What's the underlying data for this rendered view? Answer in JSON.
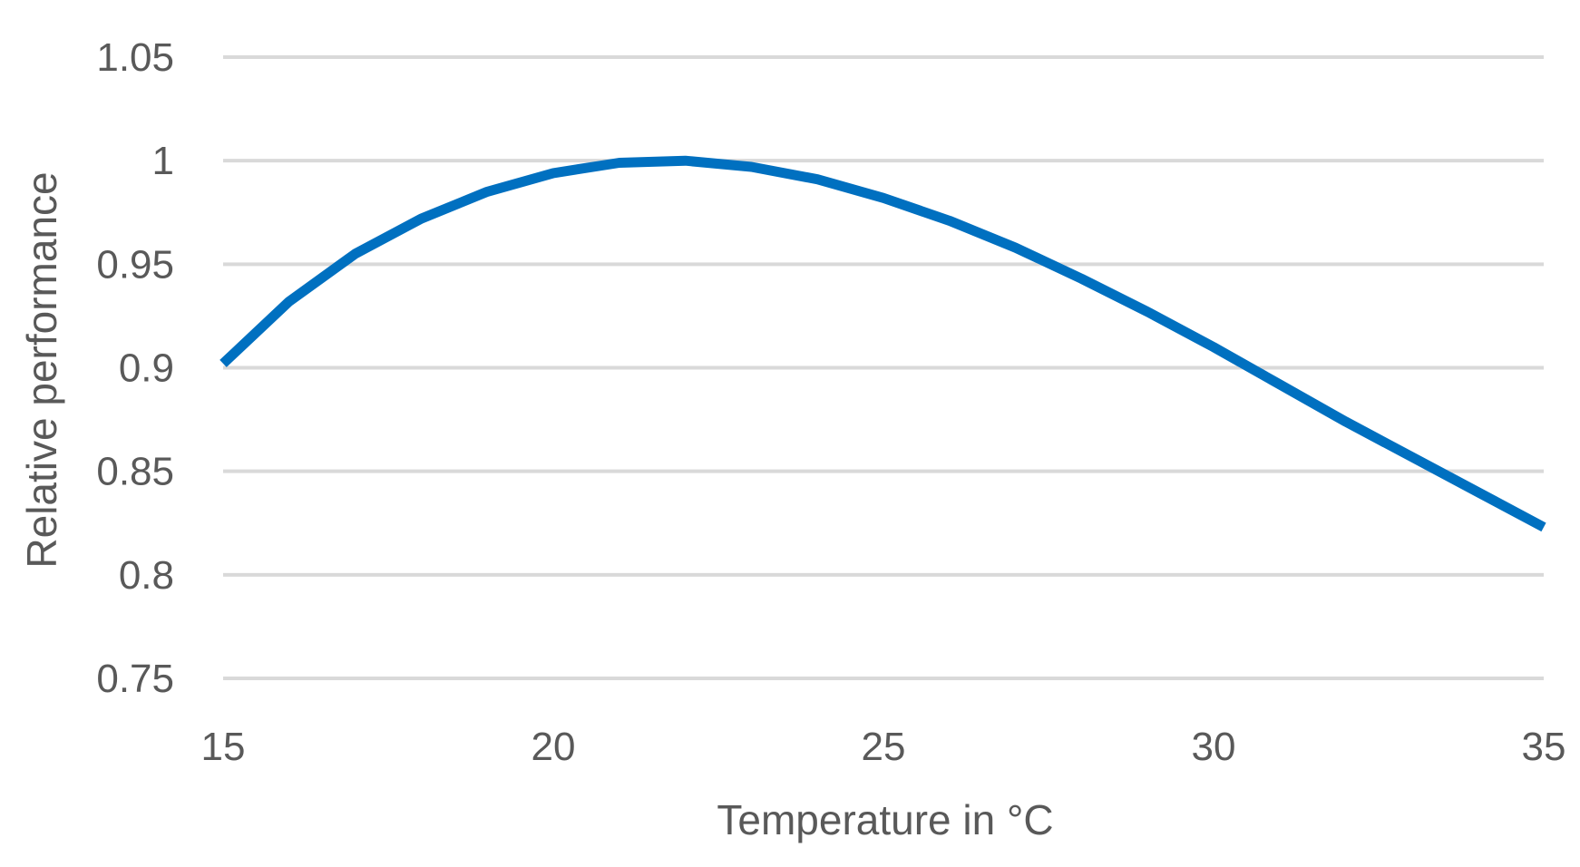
{
  "chart_data": {
    "type": "line",
    "xlabel": "Temperature in °C",
    "ylabel": "Relative performance",
    "xlim": [
      15,
      35
    ],
    "ylim": [
      0.75,
      1.05
    ],
    "x_ticks": [
      "15",
      "20",
      "25",
      "30",
      "35"
    ],
    "y_ticks": [
      "1.05",
      "1",
      "0.95",
      "0.9",
      "0.85",
      "0.8",
      "0.75"
    ],
    "grid": "horizontal",
    "legend": "none",
    "series": [
      {
        "color": "#0070c0",
        "x": [
          15,
          16,
          17,
          18,
          19,
          20,
          21,
          22,
          23,
          24,
          25,
          26,
          27,
          28,
          29,
          30,
          31,
          32,
          33,
          34,
          35
        ],
        "values": [
          0.902,
          0.932,
          0.955,
          0.972,
          0.985,
          0.994,
          0.999,
          1.0,
          0.997,
          0.991,
          0.982,
          0.971,
          0.958,
          0.943,
          0.927,
          0.91,
          0.892,
          0.874,
          0.857,
          0.84,
          0.823
        ]
      }
    ]
  }
}
